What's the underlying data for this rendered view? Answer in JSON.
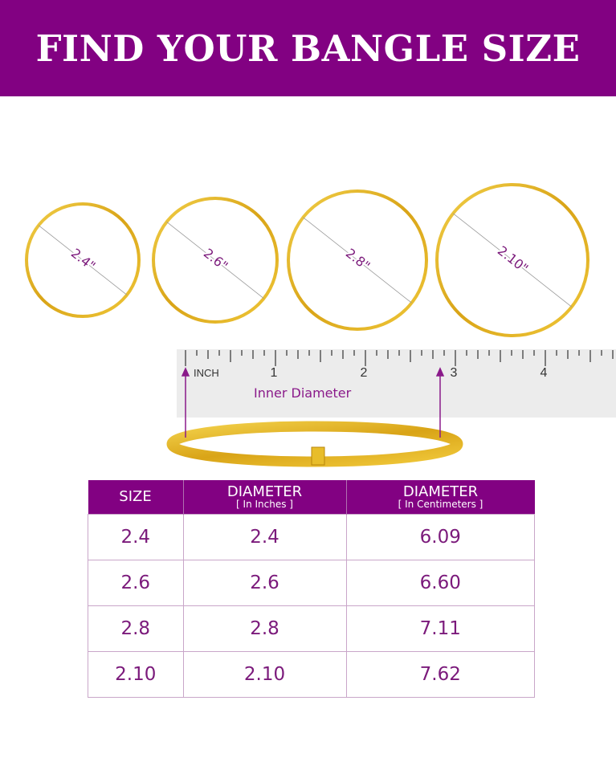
{
  "title": "FIND YOUR BANGLE SIZE",
  "bangles": [
    {
      "label": "2.4\""
    },
    {
      "label": "2.6\""
    },
    {
      "label": "2.8\""
    },
    {
      "label": "2.10\""
    }
  ],
  "ruler": {
    "unit_label": "INCH",
    "numbers": [
      "1",
      "2",
      "3",
      "4"
    ],
    "measure_label": "Inner Diameter"
  },
  "table": {
    "headers": [
      {
        "main": "SIZE",
        "sub": ""
      },
      {
        "main": "DIAMETER",
        "sub": "[ In Inches ]"
      },
      {
        "main": "DIAMETER",
        "sub": "[ In Centimeters ]"
      }
    ],
    "rows": [
      [
        "2.4",
        "2.4",
        "6.09"
      ],
      [
        "2.6",
        "2.6",
        "6.60"
      ],
      [
        "2.8",
        "2.8",
        "7.11"
      ],
      [
        "2.10",
        "2.10",
        "7.62"
      ]
    ]
  },
  "colors": {
    "brand_purple": "#820182",
    "gold": "#e0b020",
    "ruler": "#ececec"
  }
}
